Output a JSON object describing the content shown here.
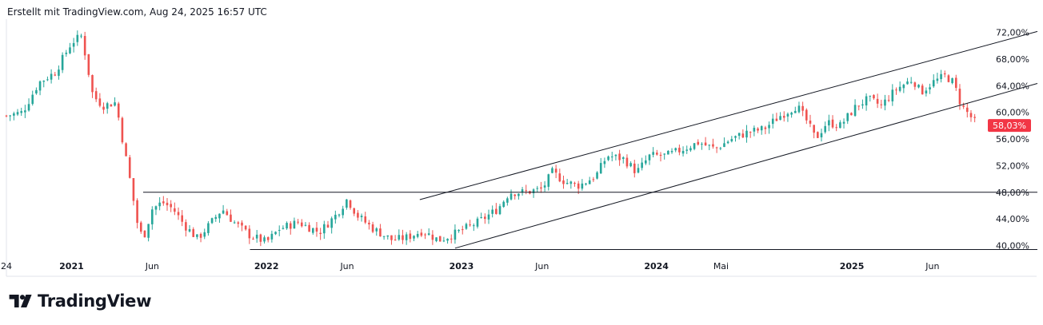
{
  "header": {
    "caption": "Erstellt mit TradingView.com, Aug 24, 2025 16:57 UTC"
  },
  "brand": {
    "name": "TradingView",
    "logo_icon": "tradingview-logo-icon"
  },
  "colors": {
    "up": "#26a69a",
    "down": "#ef5350",
    "price_label": "#f23645",
    "line": "#131722",
    "grid": "#e0e3eb"
  },
  "chart_data": {
    "type": "candlestick",
    "title": "",
    "y_unit": "%",
    "ylim": [
      38.5,
      74.0
    ],
    "y_ticks": [
      {
        "value": 72,
        "label": "72,00%"
      },
      {
        "value": 68,
        "label": "68,00%"
      },
      {
        "value": 64,
        "label": "64,00%"
      },
      {
        "value": 60,
        "label": "60,00%"
      },
      {
        "value": 56,
        "label": "56,00%"
      },
      {
        "value": 52,
        "label": "52,00%"
      },
      {
        "value": 48,
        "label": "48,00%"
      },
      {
        "value": 44,
        "label": "44,00%"
      },
      {
        "value": 40,
        "label": "40,00%"
      }
    ],
    "time_range": [
      "2020-09",
      "2025-08-24"
    ],
    "x_ticks": [
      {
        "date": "2020-09-01",
        "label": "24",
        "bold": false
      },
      {
        "date": "2021-01-01",
        "label": "2021",
        "bold": true
      },
      {
        "date": "2021-06-01",
        "label": "Jun",
        "bold": false
      },
      {
        "date": "2022-01-01",
        "label": "2022",
        "bold": true
      },
      {
        "date": "2022-06-01",
        "label": "Jun",
        "bold": false
      },
      {
        "date": "2023-01-01",
        "label": "2023",
        "bold": true
      },
      {
        "date": "2023-06-01",
        "label": "Jun",
        "bold": false
      },
      {
        "date": "2024-01-01",
        "label": "2024",
        "bold": true
      },
      {
        "date": "2024-05-01",
        "label": "Mai",
        "bold": false
      },
      {
        "date": "2025-01-01",
        "label": "2025",
        "bold": true
      },
      {
        "date": "2025-06-01",
        "label": "Jun",
        "bold": false
      }
    ],
    "price_path": [
      [
        "2020-09-01",
        59.5
      ],
      [
        "2020-10-01",
        60.0
      ],
      [
        "2020-11-01",
        64.5
      ],
      [
        "2020-12-01",
        66.0
      ],
      [
        "2021-01-01",
        70.5
      ],
      [
        "2021-01-20",
        71.5
      ],
      [
        "2021-02-10",
        62.5
      ],
      [
        "2021-03-01",
        61.0
      ],
      [
        "2021-03-25",
        61.5
      ],
      [
        "2021-04-05",
        56.5
      ],
      [
        "2021-04-20",
        50.0
      ],
      [
        "2021-05-05",
        43.0
      ],
      [
        "2021-05-15",
        41.0
      ],
      [
        "2021-06-01",
        45.5
      ],
      [
        "2021-06-20",
        46.5
      ],
      [
        "2021-07-10",
        45.5
      ],
      [
        "2021-08-01",
        43.0
      ],
      [
        "2021-08-25",
        41.0
      ],
      [
        "2021-09-20",
        43.5
      ],
      [
        "2021-10-10",
        45.5
      ],
      [
        "2021-11-01",
        43.5
      ],
      [
        "2021-12-01",
        41.5
      ],
      [
        "2022-01-01",
        40.5
      ],
      [
        "2022-01-25",
        42.5
      ],
      [
        "2022-03-01",
        43.5
      ],
      [
        "2022-04-10",
        42.0
      ],
      [
        "2022-05-10",
        44.5
      ],
      [
        "2022-06-01",
        47.0
      ],
      [
        "2022-06-20",
        44.5
      ],
      [
        "2022-07-20",
        42.5
      ],
      [
        "2022-08-25",
        40.8
      ],
      [
        "2022-09-20",
        41.2
      ],
      [
        "2022-10-20",
        42.2
      ],
      [
        "2022-11-20",
        40.8
      ],
      [
        "2022-12-20",
        41.8
      ],
      [
        "2023-02-01",
        43.5
      ],
      [
        "2023-03-10",
        45.5
      ],
      [
        "2023-04-01",
        48.0
      ],
      [
        "2023-05-01",
        48.0
      ],
      [
        "2023-06-01",
        48.5
      ],
      [
        "2023-06-20",
        51.0
      ],
      [
        "2023-07-15",
        49.5
      ],
      [
        "2023-08-10",
        49.0
      ],
      [
        "2023-09-10",
        50.5
      ],
      [
        "2023-10-01",
        53.5
      ],
      [
        "2023-11-01",
        53.0
      ],
      [
        "2023-11-25",
        51.0
      ],
      [
        "2023-12-20",
        53.5
      ],
      [
        "2024-01-20",
        53.5
      ],
      [
        "2024-02-20",
        54.5
      ],
      [
        "2024-03-20",
        55.5
      ],
      [
        "2024-04-20",
        54.5
      ],
      [
        "2024-05-20",
        56.0
      ],
      [
        "2024-06-20",
        57.0
      ],
      [
        "2024-07-20",
        57.5
      ],
      [
        "2024-08-20",
        59.5
      ],
      [
        "2024-09-20",
        61.0
      ],
      [
        "2024-10-10",
        58.5
      ],
      [
        "2024-10-25",
        56.0
      ],
      [
        "2024-11-15",
        58.5
      ],
      [
        "2024-12-10",
        58.0
      ],
      [
        "2025-01-10",
        61.0
      ],
      [
        "2025-02-01",
        62.0
      ],
      [
        "2025-02-25",
        61.0
      ],
      [
        "2025-03-25",
        63.5
      ],
      [
        "2025-04-25",
        65.0
      ],
      [
        "2025-05-10",
        63.0
      ],
      [
        "2025-06-01",
        64.5
      ],
      [
        "2025-06-25",
        65.5
      ],
      [
        "2025-07-10",
        64.5
      ],
      [
        "2025-07-25",
        61.0
      ],
      [
        "2025-08-10",
        59.5
      ],
      [
        "2025-08-24",
        58.03
      ]
    ],
    "lines": [
      {
        "name": "resistance-horizontal",
        "from": [
          "2021-05-15",
          48.0
        ],
        "to": [
          "2025-08-24",
          48.0
        ]
      },
      {
        "name": "support-horizontal",
        "from": [
          "2021-12-01",
          39.4
        ],
        "to": [
          "2025-08-24",
          39.4
        ]
      },
      {
        "name": "channel-upper",
        "from": [
          "2022-10-15",
          46.9
        ],
        "to": [
          "2025-08-24",
          69.7
        ]
      },
      {
        "name": "channel-lower",
        "from": [
          "2022-12-20",
          39.6
        ],
        "to": [
          "2025-08-24",
          61.8
        ]
      }
    ],
    "last_price": {
      "value": 58.03,
      "label": "58,03%"
    }
  }
}
